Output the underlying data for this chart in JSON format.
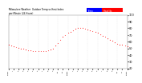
{
  "title": "Milwaukee Weather  Outdoor Temperature\nvs Heat Index\nper Minute\n(24 Hours)",
  "legend_blue_label": "Temp",
  "legend_red_label": "Heat Idx",
  "background_color": "#ffffff",
  "dot_color_temp": "#ff0000",
  "dot_color_heat": "#ff0000",
  "legend_blue": "#0000ff",
  "legend_red": "#ff0000",
  "ylim": [
    20,
    100
  ],
  "xlim": [
    0,
    1440
  ],
  "yticks": [
    20,
    30,
    40,
    50,
    60,
    70,
    80,
    90,
    100
  ],
  "xtick_positions": [
    0,
    60,
    120,
    180,
    240,
    300,
    360,
    420,
    480,
    540,
    600,
    660,
    720,
    780,
    840,
    900,
    960,
    1020,
    1080,
    1140,
    1200,
    1260,
    1320,
    1380,
    1440
  ],
  "xtick_labels": [
    "12am",
    "1",
    "2",
    "3",
    "4",
    "5",
    "6",
    "7",
    "8",
    "9",
    "10",
    "11",
    "12pm",
    "1",
    "2",
    "3",
    "4",
    "5",
    "6",
    "7",
    "8",
    "9",
    "10",
    "11",
    "12am"
  ],
  "temp_x": [
    0,
    30,
    60,
    90,
    120,
    150,
    180,
    210,
    240,
    270,
    300,
    330,
    360,
    390,
    420,
    450,
    480,
    510,
    540,
    570,
    600,
    630,
    660,
    690,
    720,
    750,
    780,
    810,
    840,
    870,
    900,
    930,
    960,
    990,
    1020,
    1050,
    1080,
    1110,
    1140,
    1170,
    1200,
    1230,
    1260,
    1290,
    1320,
    1350,
    1380,
    1410,
    1440
  ],
  "temp_y": [
    55,
    54,
    53,
    52,
    51,
    50,
    49,
    48,
    47,
    47,
    46,
    46,
    46,
    46,
    46,
    46,
    47,
    48,
    50,
    54,
    58,
    63,
    67,
    70,
    73,
    75,
    77,
    79,
    80,
    80,
    80,
    79,
    78,
    77,
    76,
    75,
    73,
    71,
    69,
    67,
    65,
    63,
    61,
    59,
    57,
    56,
    55,
    54,
    53
  ]
}
